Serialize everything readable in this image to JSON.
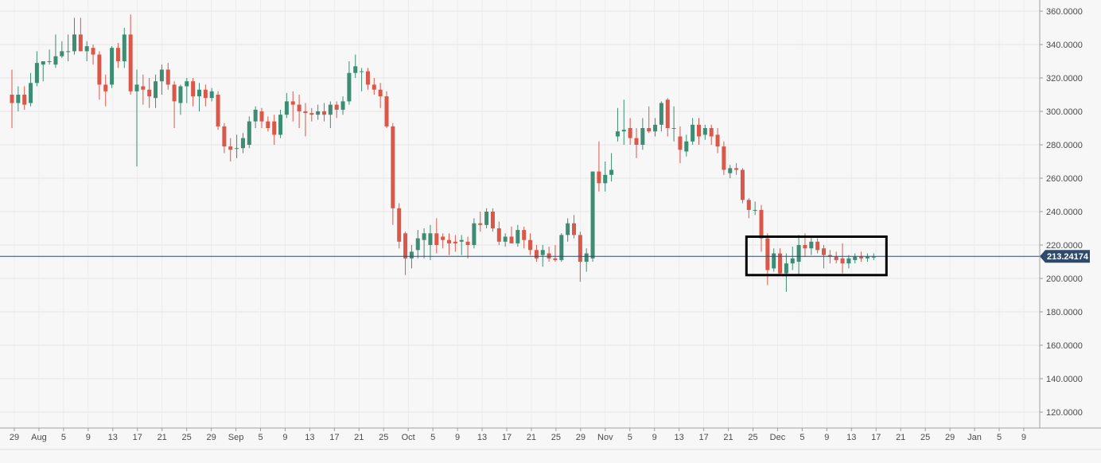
{
  "chart_data": {
    "type": "candlestick",
    "title": "",
    "xlabel": "",
    "ylabel": "",
    "ylim": [
      110,
      364
    ],
    "y_ticks": [
      "120.0000",
      "140.0000",
      "160.0000",
      "180.0000",
      "200.0000",
      "220.0000",
      "240.0000",
      "260.0000",
      "280.0000",
      "300.0000",
      "320.0000",
      "340.0000",
      "360.0000"
    ],
    "x_ticks": [
      "29",
      "Aug",
      "5",
      "9",
      "13",
      "17",
      "21",
      "25",
      "29",
      "Sep",
      "5",
      "9",
      "13",
      "17",
      "21",
      "25",
      "Oct",
      "5",
      "9",
      "13",
      "17",
      "21",
      "25",
      "29",
      "Nov",
      "5",
      "9",
      "13",
      "17",
      "21",
      "25",
      "Dec",
      "5",
      "9",
      "13",
      "17",
      "21",
      "25",
      "29",
      "Jan",
      "5",
      "9"
    ],
    "last_price": 213.24174,
    "last_price_label": "213.24174",
    "grid": true,
    "colors": {
      "up": "#3d8c74",
      "down": "#d9584a",
      "last_price": "#2f4a6b",
      "highlight_box": "#000000"
    },
    "highlight_box": {
      "from": "Nov 21",
      "to": "Dec 11",
      "low": 202,
      "high": 225
    },
    "candles": [
      {
        "date": "Jul 26",
        "o": 310,
        "h": 325,
        "l": 290,
        "c": 305
      },
      {
        "date": "Jul 27",
        "o": 305,
        "h": 315,
        "l": 300,
        "c": 310
      },
      {
        "date": "Jul 28",
        "o": 310,
        "h": 315,
        "l": 301,
        "c": 304
      },
      {
        "date": "Jul 29",
        "o": 305,
        "h": 323,
        "l": 303,
        "c": 317
      },
      {
        "date": "Jul 30",
        "o": 317,
        "h": 336,
        "l": 315,
        "c": 329
      },
      {
        "date": "Jul 31",
        "o": 328,
        "h": 330,
        "l": 318,
        "c": 330
      },
      {
        "date": "Aug 1",
        "o": 330,
        "h": 337,
        "l": 328,
        "c": 330
      },
      {
        "date": "Aug 2",
        "o": 328,
        "h": 346,
        "l": 326,
        "c": 333
      },
      {
        "date": "Aug 3",
        "o": 333,
        "h": 342,
        "l": 332,
        "c": 336
      },
      {
        "date": "Aug 4",
        "o": 336,
        "h": 346,
        "l": 330,
        "c": 336
      },
      {
        "date": "Aug 5",
        "o": 336,
        "h": 356,
        "l": 334,
        "c": 346
      },
      {
        "date": "Aug 6",
        "o": 346,
        "h": 356,
        "l": 336,
        "c": 336
      },
      {
        "date": "Aug 7",
        "o": 336,
        "h": 342,
        "l": 330,
        "c": 339
      },
      {
        "date": "Aug 8",
        "o": 338,
        "h": 340,
        "l": 328,
        "c": 334
      },
      {
        "date": "Aug 9",
        "o": 334,
        "h": 336,
        "l": 307,
        "c": 316
      },
      {
        "date": "Aug 10",
        "o": 316,
        "h": 322,
        "l": 303,
        "c": 312
      },
      {
        "date": "Aug 11",
        "o": 316,
        "h": 339,
        "l": 314,
        "c": 338
      },
      {
        "date": "Aug 12",
        "o": 338,
        "h": 341,
        "l": 326,
        "c": 330
      },
      {
        "date": "Aug 13",
        "o": 330,
        "h": 350,
        "l": 326,
        "c": 346
      },
      {
        "date": "Aug 14",
        "o": 346,
        "h": 358,
        "l": 310,
        "c": 312
      },
      {
        "date": "Aug 15",
        "o": 312,
        "h": 325,
        "l": 267,
        "c": 316
      },
      {
        "date": "Aug 16",
        "o": 315,
        "h": 322,
        "l": 304,
        "c": 313
      },
      {
        "date": "Aug 17",
        "o": 313,
        "h": 320,
        "l": 302,
        "c": 309
      },
      {
        "date": "Aug 18",
        "o": 308,
        "h": 322,
        "l": 302,
        "c": 318
      },
      {
        "date": "Aug 19",
        "o": 318,
        "h": 328,
        "l": 310,
        "c": 325
      },
      {
        "date": "Aug 20",
        "o": 325,
        "h": 329,
        "l": 313,
        "c": 316
      },
      {
        "date": "Aug 21",
        "o": 316,
        "h": 318,
        "l": 290,
        "c": 306
      },
      {
        "date": "Aug 22",
        "o": 305,
        "h": 316,
        "l": 298,
        "c": 315
      },
      {
        "date": "Aug 23",
        "o": 315,
        "h": 320,
        "l": 305,
        "c": 318
      },
      {
        "date": "Aug 24",
        "o": 318,
        "h": 320,
        "l": 303,
        "c": 309
      },
      {
        "date": "Aug 25",
        "o": 309,
        "h": 317,
        "l": 300,
        "c": 313
      },
      {
        "date": "Aug 26",
        "o": 313,
        "h": 316,
        "l": 303,
        "c": 308
      },
      {
        "date": "Aug 27",
        "o": 308,
        "h": 314,
        "l": 306,
        "c": 312
      },
      {
        "date": "Aug 28",
        "o": 310,
        "h": 312,
        "l": 289,
        "c": 291
      },
      {
        "date": "Aug 29",
        "o": 291,
        "h": 293,
        "l": 275,
        "c": 279
      },
      {
        "date": "Aug 30",
        "o": 279,
        "h": 284,
        "l": 270,
        "c": 277
      },
      {
        "date": "Aug 31",
        "o": 278,
        "h": 286,
        "l": 272,
        "c": 278
      },
      {
        "date": "Sep 1",
        "o": 278,
        "h": 287,
        "l": 275,
        "c": 284
      },
      {
        "date": "Sep 2",
        "o": 280,
        "h": 297,
        "l": 278,
        "c": 294
      },
      {
        "date": "Sep 3",
        "o": 294,
        "h": 303,
        "l": 290,
        "c": 301
      },
      {
        "date": "Sep 4",
        "o": 300,
        "h": 302,
        "l": 290,
        "c": 294
      },
      {
        "date": "Sep 5",
        "o": 294,
        "h": 297,
        "l": 288,
        "c": 290
      },
      {
        "date": "Sep 6",
        "o": 294,
        "h": 298,
        "l": 280,
        "c": 286
      },
      {
        "date": "Sep 7",
        "o": 286,
        "h": 301,
        "l": 284,
        "c": 298
      },
      {
        "date": "Sep 8",
        "o": 298,
        "h": 311,
        "l": 296,
        "c": 306
      },
      {
        "date": "Sep 9",
        "o": 306,
        "h": 312,
        "l": 294,
        "c": 304
      },
      {
        "date": "Sep 10",
        "o": 304,
        "h": 310,
        "l": 290,
        "c": 300
      },
      {
        "date": "Sep 11",
        "o": 300,
        "h": 305,
        "l": 285,
        "c": 299
      },
      {
        "date": "Sep 12",
        "o": 299,
        "h": 302,
        "l": 294,
        "c": 298
      },
      {
        "date": "Sep 13",
        "o": 298,
        "h": 304,
        "l": 295,
        "c": 300
      },
      {
        "date": "Sep 14",
        "o": 300,
        "h": 305,
        "l": 294,
        "c": 298
      },
      {
        "date": "Sep 15",
        "o": 298,
        "h": 306,
        "l": 290,
        "c": 304
      },
      {
        "date": "Sep 16",
        "o": 304,
        "h": 306,
        "l": 296,
        "c": 301
      },
      {
        "date": "Sep 17",
        "o": 301,
        "h": 309,
        "l": 298,
        "c": 306
      },
      {
        "date": "Sep 18",
        "o": 306,
        "h": 330,
        "l": 304,
        "c": 323
      },
      {
        "date": "Sep 19",
        "o": 323,
        "h": 334,
        "l": 320,
        "c": 327
      },
      {
        "date": "Sep 20",
        "o": 324,
        "h": 326,
        "l": 312,
        "c": 324
      },
      {
        "date": "Sep 21",
        "o": 324,
        "h": 326,
        "l": 313,
        "c": 316
      },
      {
        "date": "Sep 22",
        "o": 316,
        "h": 320,
        "l": 310,
        "c": 313
      },
      {
        "date": "Sep 23",
        "o": 313,
        "h": 317,
        "l": 302,
        "c": 309
      },
      {
        "date": "Sep 24",
        "o": 309,
        "h": 312,
        "l": 290,
        "c": 291
      },
      {
        "date": "Sep 25",
        "o": 291,
        "h": 293,
        "l": 232,
        "c": 242
      },
      {
        "date": "Sep 26",
        "o": 242,
        "h": 245,
        "l": 218,
        "c": 222
      },
      {
        "date": "Sep 27",
        "o": 227,
        "h": 228,
        "l": 202,
        "c": 212
      },
      {
        "date": "Sep 28",
        "o": 212,
        "h": 220,
        "l": 206,
        "c": 216
      },
      {
        "date": "Sep 29",
        "o": 217,
        "h": 229,
        "l": 212,
        "c": 224
      },
      {
        "date": "Sep 30",
        "o": 223,
        "h": 230,
        "l": 212,
        "c": 227
      },
      {
        "date": "Oct 1",
        "o": 220,
        "h": 232,
        "l": 211,
        "c": 227
      },
      {
        "date": "Oct 2",
        "o": 227,
        "h": 236,
        "l": 215,
        "c": 220
      },
      {
        "date": "Oct 3",
        "o": 225,
        "h": 227,
        "l": 218,
        "c": 223
      },
      {
        "date": "Oct 4",
        "o": 223,
        "h": 227,
        "l": 214,
        "c": 221
      },
      {
        "date": "Oct 5",
        "o": 222,
        "h": 226,
        "l": 216,
        "c": 221
      },
      {
        "date": "Oct 6",
        "o": 222,
        "h": 226,
        "l": 214,
        "c": 223
      },
      {
        "date": "Oct 7",
        "o": 222,
        "h": 225,
        "l": 212,
        "c": 220
      },
      {
        "date": "Oct 8",
        "o": 220,
        "h": 236,
        "l": 218,
        "c": 233
      },
      {
        "date": "Oct 9",
        "o": 233,
        "h": 240,
        "l": 228,
        "c": 232
      },
      {
        "date": "Oct 10",
        "o": 232,
        "h": 242,
        "l": 230,
        "c": 240
      },
      {
        "date": "Oct 11",
        "o": 240,
        "h": 242,
        "l": 228,
        "c": 230
      },
      {
        "date": "Oct 12",
        "o": 230,
        "h": 234,
        "l": 220,
        "c": 222
      },
      {
        "date": "Oct 13",
        "o": 222,
        "h": 227,
        "l": 219,
        "c": 225
      },
      {
        "date": "Oct 14",
        "o": 225,
        "h": 231,
        "l": 221,
        "c": 221
      },
      {
        "date": "Oct 15",
        "o": 221,
        "h": 232,
        "l": 219,
        "c": 229
      },
      {
        "date": "Oct 16",
        "o": 229,
        "h": 231,
        "l": 218,
        "c": 223
      },
      {
        "date": "Oct 17",
        "o": 223,
        "h": 227,
        "l": 214,
        "c": 217
      },
      {
        "date": "Oct 18",
        "o": 217,
        "h": 220,
        "l": 210,
        "c": 212
      },
      {
        "date": "Oct 19",
        "o": 214,
        "h": 220,
        "l": 207,
        "c": 217
      },
      {
        "date": "Oct 20",
        "o": 215,
        "h": 219,
        "l": 210,
        "c": 212
      },
      {
        "date": "Oct 21",
        "o": 212,
        "h": 220,
        "l": 210,
        "c": 211
      },
      {
        "date": "Oct 22",
        "o": 211,
        "h": 227,
        "l": 210,
        "c": 226
      },
      {
        "date": "Oct 23",
        "o": 226,
        "h": 236,
        "l": 222,
        "c": 233
      },
      {
        "date": "Oct 24",
        "o": 233,
        "h": 238,
        "l": 224,
        "c": 226
      },
      {
        "date": "Oct 25",
        "o": 226,
        "h": 228,
        "l": 198,
        "c": 210
      },
      {
        "date": "Oct 26",
        "o": 210,
        "h": 218,
        "l": 204,
        "c": 215
      },
      {
        "date": "Oct 27",
        "o": 212,
        "h": 264,
        "l": 210,
        "c": 264
      },
      {
        "date": "Oct 28",
        "o": 264,
        "h": 282,
        "l": 252,
        "c": 257
      },
      {
        "date": "Oct 29",
        "o": 257,
        "h": 270,
        "l": 252,
        "c": 262
      },
      {
        "date": "Oct 30",
        "o": 262,
        "h": 275,
        "l": 258,
        "c": 265
      },
      {
        "date": "Oct 31",
        "o": 285,
        "h": 302,
        "l": 282,
        "c": 288
      },
      {
        "date": "Nov 1",
        "o": 288,
        "h": 307,
        "l": 280,
        "c": 289
      },
      {
        "date": "Nov 2",
        "o": 290,
        "h": 296,
        "l": 280,
        "c": 284
      },
      {
        "date": "Nov 3",
        "o": 284,
        "h": 290,
        "l": 272,
        "c": 280
      },
      {
        "date": "Nov 4",
        "o": 280,
        "h": 296,
        "l": 277,
        "c": 290
      },
      {
        "date": "Nov 5",
        "o": 290,
        "h": 303,
        "l": 287,
        "c": 288
      },
      {
        "date": "Nov 6",
        "o": 288,
        "h": 296,
        "l": 285,
        "c": 292
      },
      {
        "date": "Nov 7",
        "o": 292,
        "h": 306,
        "l": 288,
        "c": 305
      },
      {
        "date": "Nov 8",
        "o": 307,
        "h": 308,
        "l": 285,
        "c": 290
      },
      {
        "date": "Nov 9",
        "o": 290,
        "h": 303,
        "l": 282,
        "c": 290
      },
      {
        "date": "Nov 10",
        "o": 285,
        "h": 291,
        "l": 269,
        "c": 277
      },
      {
        "date": "Nov 11",
        "o": 276,
        "h": 286,
        "l": 273,
        "c": 282
      },
      {
        "date": "Nov 12",
        "o": 282,
        "h": 296,
        "l": 280,
        "c": 292
      },
      {
        "date": "Nov 13",
        "o": 292,
        "h": 296,
        "l": 280,
        "c": 285
      },
      {
        "date": "Nov 14",
        "o": 286,
        "h": 292,
        "l": 283,
        "c": 290
      },
      {
        "date": "Nov 15",
        "o": 290,
        "h": 292,
        "l": 280,
        "c": 285
      },
      {
        "date": "Nov 16",
        "o": 286,
        "h": 290,
        "l": 275,
        "c": 279
      },
      {
        "date": "Nov 17",
        "o": 279,
        "h": 282,
        "l": 262,
        "c": 265
      },
      {
        "date": "Nov 18",
        "o": 263,
        "h": 268,
        "l": 260,
        "c": 266
      },
      {
        "date": "Nov 19",
        "o": 266,
        "h": 269,
        "l": 262,
        "c": 265
      },
      {
        "date": "Nov 20",
        "o": 265,
        "h": 266,
        "l": 245,
        "c": 247
      },
      {
        "date": "Nov 21",
        "o": 247,
        "h": 248,
        "l": 236,
        "c": 241
      },
      {
        "date": "Nov 22",
        "o": 241,
        "h": 246,
        "l": 238,
        "c": 241
      },
      {
        "date": "Nov 23",
        "o": 241,
        "h": 244,
        "l": 216,
        "c": 224
      },
      {
        "date": "Nov 24",
        "o": 224,
        "h": 227,
        "l": 196,
        "c": 205
      },
      {
        "date": "Nov 25",
        "o": 206,
        "h": 218,
        "l": 204,
        "c": 215
      },
      {
        "date": "Nov 26",
        "o": 215,
        "h": 218,
        "l": 202,
        "c": 203
      },
      {
        "date": "Nov 27",
        "o": 203,
        "h": 215,
        "l": 192,
        "c": 209
      },
      {
        "date": "Nov 28",
        "o": 209,
        "h": 219,
        "l": 205,
        "c": 212
      },
      {
        "date": "Nov 29",
        "o": 210,
        "h": 226,
        "l": 202,
        "c": 220
      },
      {
        "date": "Nov 30",
        "o": 220,
        "h": 227,
        "l": 213,
        "c": 218
      },
      {
        "date": "Dec 1",
        "o": 218,
        "h": 225,
        "l": 214,
        "c": 222
      },
      {
        "date": "Dec 2",
        "o": 222,
        "h": 224,
        "l": 215,
        "c": 217
      },
      {
        "date": "Dec 3",
        "o": 218,
        "h": 220,
        "l": 206,
        "c": 214
      },
      {
        "date": "Dec 4",
        "o": 214,
        "h": 217,
        "l": 209,
        "c": 213
      },
      {
        "date": "Dec 5",
        "o": 213,
        "h": 216,
        "l": 209,
        "c": 211
      },
      {
        "date": "Dec 6",
        "o": 212,
        "h": 221,
        "l": 203,
        "c": 209
      },
      {
        "date": "Dec 7",
        "o": 209,
        "h": 214,
        "l": 206,
        "c": 212
      },
      {
        "date": "Dec 8",
        "o": 211,
        "h": 215,
        "l": 209,
        "c": 213
      },
      {
        "date": "Dec 9",
        "o": 213,
        "h": 216,
        "l": 210,
        "c": 212
      },
      {
        "date": "Dec 10",
        "o": 212,
        "h": 215,
        "l": 210,
        "c": 213
      },
      {
        "date": "Dec 11",
        "o": 213,
        "h": 215,
        "l": 211,
        "c": 213
      }
    ]
  }
}
